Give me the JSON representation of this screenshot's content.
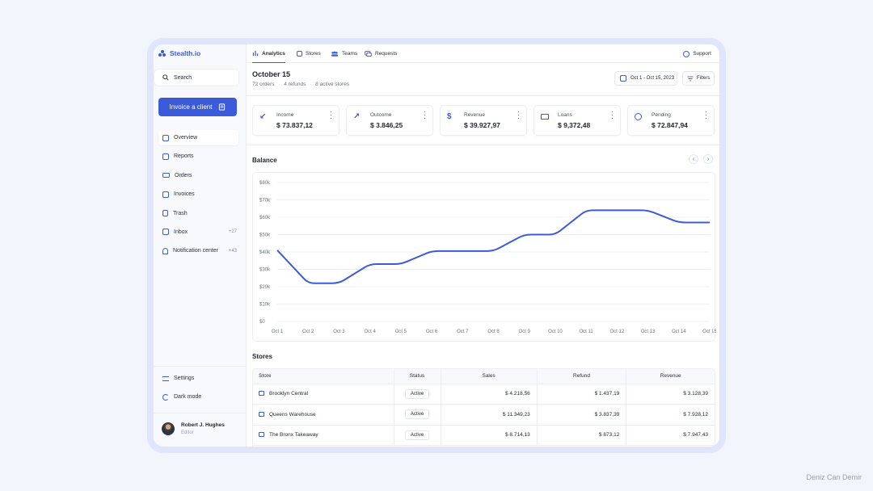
{
  "app": {
    "name": "Stealth.io"
  },
  "search": {
    "label": "Search"
  },
  "invoice_button": {
    "label": "Invoice a client"
  },
  "sidebar": {
    "items": [
      {
        "label": "Overview",
        "icon": "layout-icon",
        "active": true,
        "count": ""
      },
      {
        "label": "Reports",
        "icon": "file-icon",
        "count": ""
      },
      {
        "label": "Orders",
        "icon": "truck-icon",
        "count": ""
      },
      {
        "label": "Invoices",
        "icon": "receipt-icon",
        "count": ""
      },
      {
        "label": "Trash",
        "icon": "trash-icon",
        "count": ""
      },
      {
        "label": "Inbox",
        "icon": "inbox-icon",
        "count": "+27"
      },
      {
        "label": "Notification center",
        "icon": "bell-icon",
        "count": "+43"
      }
    ],
    "bottom": [
      {
        "label": "Settings",
        "icon": "sliders-icon"
      },
      {
        "label": "Dark mode",
        "icon": "moon-icon"
      }
    ],
    "user": {
      "name": "Robert J. Hughes",
      "role": "Editor"
    }
  },
  "tabs": [
    {
      "label": "Analytics",
      "active": true
    },
    {
      "label": "Stores"
    },
    {
      "label": "Teams"
    },
    {
      "label": "Requests"
    }
  ],
  "support": {
    "label": "Support"
  },
  "header": {
    "title": "October 15",
    "orders": "72 orders",
    "refunds": "4 refunds",
    "stores": "8 active stores",
    "date_range": "Oct 1 - Oct 15, 2023",
    "filters": "Filters"
  },
  "stats": [
    {
      "label": "Income",
      "value": "$ 73.837,12",
      "icon": "arrow-down-left-icon"
    },
    {
      "label": "Outcome",
      "value": "$ 3.846,25",
      "icon": "arrow-up-right-icon"
    },
    {
      "label": "Revenue",
      "value": "$ 39.927,97",
      "icon": "dollar-icon"
    },
    {
      "label": "Loans",
      "value": "$ 9,372,48",
      "icon": "cash-icon"
    },
    {
      "label": "Pending",
      "value": "$ 72.847,94",
      "icon": "clock-icon"
    }
  ],
  "balance": {
    "title": "Balance"
  },
  "chart_data": {
    "type": "line",
    "title": "",
    "x": [
      "Oct 1",
      "Oct 2",
      "Oct 3",
      "Oct 4",
      "Oct 5",
      "Oct 6",
      "Oct 7",
      "Oct 8",
      "Oct 9",
      "Oct 10",
      "Oct 11",
      "Oct 12",
      "Oct 13",
      "Oct 14",
      "Oct 15"
    ],
    "series": [
      {
        "values": [
          41000,
          22000,
          22000,
          33000,
          33000,
          40500,
          40500,
          40500,
          50000,
          50000,
          64000,
          64000,
          64000,
          57000,
          57000
        ],
        "color": "#3b5bdb"
      }
    ],
    "yticks": [
      "$0",
      "$10k",
      "$20k",
      "$30k",
      "$40k",
      "$50k",
      "$60k",
      "$70k",
      "$80k"
    ],
    "ylim": [
      0,
      80000
    ],
    "grid": true,
    "xlabel": "",
    "ylabel": ""
  },
  "stores": {
    "title": "Stores",
    "columns": [
      "Store",
      "Status",
      "Sales",
      "Refund",
      "Revenue"
    ],
    "rows": [
      {
        "store": "Brooklyn Central",
        "status": "Active",
        "sales": "$ 4.218,56",
        "refund": "$ 1.437,19",
        "revenue": "$ 3.128,39"
      },
      {
        "store": "Queens Warehouse",
        "status": "Active",
        "sales": "$ 11.349,23",
        "refund": "$ 3.837,39",
        "revenue": "$ 7.928,12"
      },
      {
        "store": "The Bronx Takeaway",
        "status": "Active",
        "sales": "$ 8.714,13",
        "refund": "$ 873,12",
        "revenue": "$ 7.947,43"
      }
    ]
  },
  "watermark": "Deniz Can Demir",
  "colors": {
    "accent": "#3b5bdb",
    "background": "#f3f5fc",
    "frame": "#dfe5fb"
  }
}
